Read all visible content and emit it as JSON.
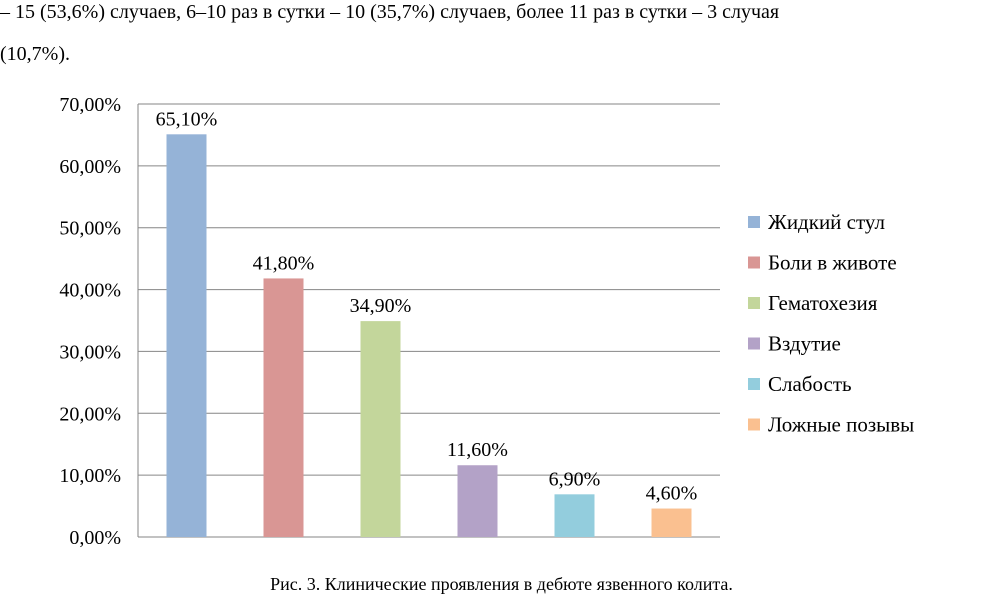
{
  "document": {
    "intro_line_1": "– 15 (53,6%) случаев, 6–10 раз в сутки – 10 (35,7%) случаев, более 11 раз в сутки – 3 случая",
    "intro_line_2": "(10,7%).",
    "caption": "Рис. 3. Клинические проявления в дебюте язвенного колита."
  },
  "chart_data": {
    "type": "bar",
    "title": "",
    "xlabel": "",
    "ylabel": "",
    "categories": [
      "Жидкий стул",
      "Боли в животе",
      "Гематохезия",
      "Вздутие",
      "Слабость",
      "Ложные позывы"
    ],
    "values": [
      65.1,
      41.8,
      34.9,
      11.6,
      6.9,
      4.6
    ],
    "value_labels": [
      "65,10%",
      "41,80%",
      "34,90%",
      "11,60%",
      "6,90%",
      "4,60%"
    ],
    "colors": [
      "#95b3d7",
      "#d99694",
      "#c3d69b",
      "#b3a2c7",
      "#93cddd",
      "#fac090"
    ],
    "ylim": [
      0,
      70
    ],
    "yticks": [
      0,
      10,
      20,
      30,
      40,
      50,
      60,
      70
    ],
    "ytick_labels": [
      "0,00%",
      "10,00%",
      "20,00%",
      "30,00%",
      "40,00%",
      "50,00%",
      "60,00%",
      "70,00%"
    ],
    "grid": true,
    "legend_position": "right"
  }
}
